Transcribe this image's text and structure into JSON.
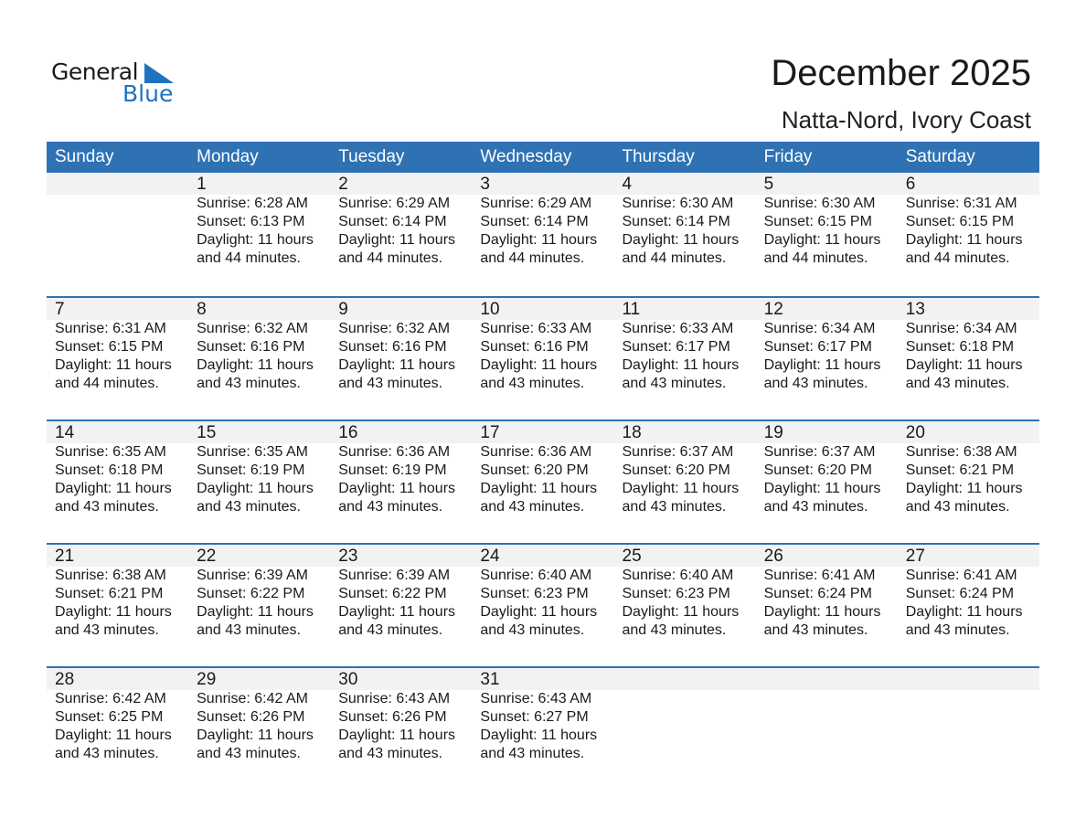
{
  "logo": {
    "word1": "General",
    "word2": "Blue",
    "accent": "#1e73be"
  },
  "title": "December 2025",
  "location": "Natta-Nord, Ivory Coast",
  "header_color": "#2e72b4",
  "days": [
    "Sunday",
    "Monday",
    "Tuesday",
    "Wednesday",
    "Thursday",
    "Friday",
    "Saturday"
  ],
  "weeks": [
    [
      null,
      {
        "day": "1",
        "sunrise": "Sunrise: 6:28 AM",
        "sunset": "Sunset: 6:13 PM",
        "daylight": "Daylight: 11 hours",
        "minutes": "and 44 minutes."
      },
      {
        "day": "2",
        "sunrise": "Sunrise: 6:29 AM",
        "sunset": "Sunset: 6:14 PM",
        "daylight": "Daylight: 11 hours",
        "minutes": "and 44 minutes."
      },
      {
        "day": "3",
        "sunrise": "Sunrise: 6:29 AM",
        "sunset": "Sunset: 6:14 PM",
        "daylight": "Daylight: 11 hours",
        "minutes": "and 44 minutes."
      },
      {
        "day": "4",
        "sunrise": "Sunrise: 6:30 AM",
        "sunset": "Sunset: 6:14 PM",
        "daylight": "Daylight: 11 hours",
        "minutes": "and 44 minutes."
      },
      {
        "day": "5",
        "sunrise": "Sunrise: 6:30 AM",
        "sunset": "Sunset: 6:15 PM",
        "daylight": "Daylight: 11 hours",
        "minutes": "and 44 minutes."
      },
      {
        "day": "6",
        "sunrise": "Sunrise: 6:31 AM",
        "sunset": "Sunset: 6:15 PM",
        "daylight": "Daylight: 11 hours",
        "minutes": "and 44 minutes."
      }
    ],
    [
      {
        "day": "7",
        "sunrise": "Sunrise: 6:31 AM",
        "sunset": "Sunset: 6:15 PM",
        "daylight": "Daylight: 11 hours",
        "minutes": "and 44 minutes."
      },
      {
        "day": "8",
        "sunrise": "Sunrise: 6:32 AM",
        "sunset": "Sunset: 6:16 PM",
        "daylight": "Daylight: 11 hours",
        "minutes": "and 43 minutes."
      },
      {
        "day": "9",
        "sunrise": "Sunrise: 6:32 AM",
        "sunset": "Sunset: 6:16 PM",
        "daylight": "Daylight: 11 hours",
        "minutes": "and 43 minutes."
      },
      {
        "day": "10",
        "sunrise": "Sunrise: 6:33 AM",
        "sunset": "Sunset: 6:16 PM",
        "daylight": "Daylight: 11 hours",
        "minutes": "and 43 minutes."
      },
      {
        "day": "11",
        "sunrise": "Sunrise: 6:33 AM",
        "sunset": "Sunset: 6:17 PM",
        "daylight": "Daylight: 11 hours",
        "minutes": "and 43 minutes."
      },
      {
        "day": "12",
        "sunrise": "Sunrise: 6:34 AM",
        "sunset": "Sunset: 6:17 PM",
        "daylight": "Daylight: 11 hours",
        "minutes": "and 43 minutes."
      },
      {
        "day": "13",
        "sunrise": "Sunrise: 6:34 AM",
        "sunset": "Sunset: 6:18 PM",
        "daylight": "Daylight: 11 hours",
        "minutes": "and 43 minutes."
      }
    ],
    [
      {
        "day": "14",
        "sunrise": "Sunrise: 6:35 AM",
        "sunset": "Sunset: 6:18 PM",
        "daylight": "Daylight: 11 hours",
        "minutes": "and 43 minutes."
      },
      {
        "day": "15",
        "sunrise": "Sunrise: 6:35 AM",
        "sunset": "Sunset: 6:19 PM",
        "daylight": "Daylight: 11 hours",
        "minutes": "and 43 minutes."
      },
      {
        "day": "16",
        "sunrise": "Sunrise: 6:36 AM",
        "sunset": "Sunset: 6:19 PM",
        "daylight": "Daylight: 11 hours",
        "minutes": "and 43 minutes."
      },
      {
        "day": "17",
        "sunrise": "Sunrise: 6:36 AM",
        "sunset": "Sunset: 6:20 PM",
        "daylight": "Daylight: 11 hours",
        "minutes": "and 43 minutes."
      },
      {
        "day": "18",
        "sunrise": "Sunrise: 6:37 AM",
        "sunset": "Sunset: 6:20 PM",
        "daylight": "Daylight: 11 hours",
        "minutes": "and 43 minutes."
      },
      {
        "day": "19",
        "sunrise": "Sunrise: 6:37 AM",
        "sunset": "Sunset: 6:20 PM",
        "daylight": "Daylight: 11 hours",
        "minutes": "and 43 minutes."
      },
      {
        "day": "20",
        "sunrise": "Sunrise: 6:38 AM",
        "sunset": "Sunset: 6:21 PM",
        "daylight": "Daylight: 11 hours",
        "minutes": "and 43 minutes."
      }
    ],
    [
      {
        "day": "21",
        "sunrise": "Sunrise: 6:38 AM",
        "sunset": "Sunset: 6:21 PM",
        "daylight": "Daylight: 11 hours",
        "minutes": "and 43 minutes."
      },
      {
        "day": "22",
        "sunrise": "Sunrise: 6:39 AM",
        "sunset": "Sunset: 6:22 PM",
        "daylight": "Daylight: 11 hours",
        "minutes": "and 43 minutes."
      },
      {
        "day": "23",
        "sunrise": "Sunrise: 6:39 AM",
        "sunset": "Sunset: 6:22 PM",
        "daylight": "Daylight: 11 hours",
        "minutes": "and 43 minutes."
      },
      {
        "day": "24",
        "sunrise": "Sunrise: 6:40 AM",
        "sunset": "Sunset: 6:23 PM",
        "daylight": "Daylight: 11 hours",
        "minutes": "and 43 minutes."
      },
      {
        "day": "25",
        "sunrise": "Sunrise: 6:40 AM",
        "sunset": "Sunset: 6:23 PM",
        "daylight": "Daylight: 11 hours",
        "minutes": "and 43 minutes."
      },
      {
        "day": "26",
        "sunrise": "Sunrise: 6:41 AM",
        "sunset": "Sunset: 6:24 PM",
        "daylight": "Daylight: 11 hours",
        "minutes": "and 43 minutes."
      },
      {
        "day": "27",
        "sunrise": "Sunrise: 6:41 AM",
        "sunset": "Sunset: 6:24 PM",
        "daylight": "Daylight: 11 hours",
        "minutes": "and 43 minutes."
      }
    ],
    [
      {
        "day": "28",
        "sunrise": "Sunrise: 6:42 AM",
        "sunset": "Sunset: 6:25 PM",
        "daylight": "Daylight: 11 hours",
        "minutes": "and 43 minutes."
      },
      {
        "day": "29",
        "sunrise": "Sunrise: 6:42 AM",
        "sunset": "Sunset: 6:26 PM",
        "daylight": "Daylight: 11 hours",
        "minutes": "and 43 minutes."
      },
      {
        "day": "30",
        "sunrise": "Sunrise: 6:43 AM",
        "sunset": "Sunset: 6:26 PM",
        "daylight": "Daylight: 11 hours",
        "minutes": "and 43 minutes."
      },
      {
        "day": "31",
        "sunrise": "Sunrise: 6:43 AM",
        "sunset": "Sunset: 6:27 PM",
        "daylight": "Daylight: 11 hours",
        "minutes": "and 43 minutes."
      },
      null,
      null,
      null
    ]
  ]
}
